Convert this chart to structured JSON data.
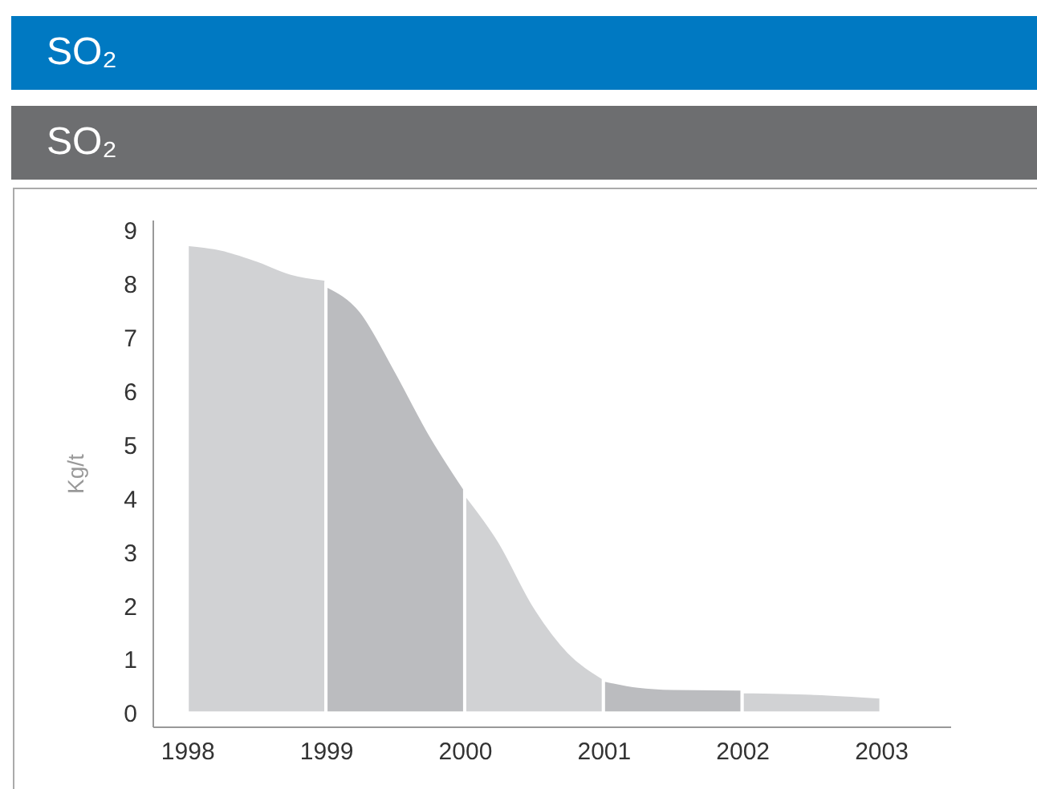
{
  "chart_data": {
    "type": "area",
    "title": "SO₂",
    "subtitle": "SO₂",
    "ylabel": "Kg/t",
    "xlim": [
      1997.75,
      2003.5
    ],
    "xticks": [
      1998,
      1999,
      2000,
      2001,
      2002,
      2003
    ],
    "ylim": [
      -0.25,
      9.2
    ],
    "yticks": [
      0,
      1,
      2,
      3,
      4,
      5,
      6,
      7,
      8,
      9
    ],
    "series": [
      {
        "color": "#d1d2d4",
        "x": [
          1998,
          1998.25,
          1998.5,
          1998.75,
          1999
        ],
        "values": [
          8.74,
          8.65,
          8.45,
          8.2,
          8.09
        ]
      },
      {
        "color": "#bbbcbf",
        "x": [
          1999,
          1999.25,
          1999.5,
          1999.75,
          2000
        ],
        "values": [
          7.98,
          7.5,
          6.4,
          5.2,
          4.18
        ]
      },
      {
        "color": "#d1d2d4",
        "x": [
          2000,
          2000.25,
          2000.5,
          2000.75,
          2001
        ],
        "values": [
          4.1,
          3.2,
          2.0,
          1.14,
          0.65
        ]
      },
      {
        "color": "#bbbcbf",
        "x": [
          2001,
          2001.25,
          2001.5,
          2002
        ],
        "values": [
          0.62,
          0.5,
          0.46,
          0.45
        ]
      },
      {
        "color": "#d1d2d4",
        "x": [
          2002,
          2002.5,
          2003
        ],
        "values": [
          0.4,
          0.37,
          0.3
        ]
      }
    ]
  }
}
